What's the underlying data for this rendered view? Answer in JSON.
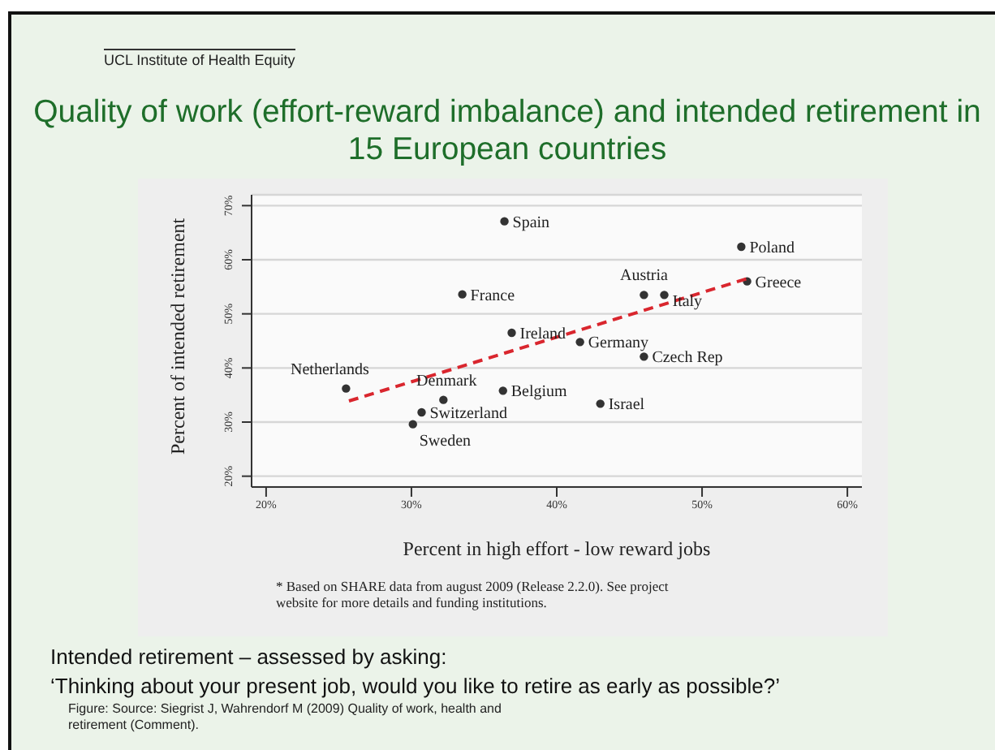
{
  "chart_data": {
    "type": "scatter",
    "title": "Quality of work (effort-reward imbalance) and intended retirement in 15 European countries",
    "xlabel": "Percent in high effort - low reward jobs",
    "ylabel": "Percent of intended retirement",
    "xlim": [
      19,
      61
    ],
    "ylim": [
      18,
      72
    ],
    "xticks": [
      {
        "value": 20,
        "label": "20%"
      },
      {
        "value": 30,
        "label": "30%"
      },
      {
        "value": 40,
        "label": "40%"
      },
      {
        "value": 50,
        "label": "50%"
      },
      {
        "value": 60,
        "label": "60%"
      }
    ],
    "yticks": [
      {
        "value": 20,
        "label": "20%"
      },
      {
        "value": 30,
        "label": "30%"
      },
      {
        "value": 40,
        "label": "40%"
      },
      {
        "value": 50,
        "label": "50%"
      },
      {
        "value": 60,
        "label": "60%"
      },
      {
        "value": 70,
        "label": "70%"
      }
    ],
    "grid": "y",
    "marker": "circle",
    "series": [
      {
        "name": "Spain",
        "color": "#333333",
        "x": [
          36.4
        ],
        "values": [
          67.1
        ]
      },
      {
        "name": "Poland",
        "color": "#333333",
        "x": [
          52.7
        ],
        "values": [
          62.4
        ]
      },
      {
        "name": "Greece",
        "color": "#333333",
        "x": [
          53.1
        ],
        "values": [
          56.0
        ]
      },
      {
        "name": "Austria",
        "color": "#333333",
        "x": [
          46.0
        ],
        "values": [
          53.5
        ]
      },
      {
        "name": "Italy",
        "color": "#333333",
        "x": [
          47.4
        ],
        "values": [
          53.5
        ]
      },
      {
        "name": "France",
        "color": "#333333",
        "x": [
          33.5
        ],
        "values": [
          53.6
        ]
      },
      {
        "name": "Ireland",
        "color": "#333333",
        "x": [
          36.9
        ],
        "values": [
          46.5
        ]
      },
      {
        "name": "Germany",
        "color": "#333333",
        "x": [
          41.6
        ],
        "values": [
          44.8
        ]
      },
      {
        "name": "Czech Rep",
        "color": "#333333",
        "x": [
          46.0
        ],
        "values": [
          42.1
        ]
      },
      {
        "name": "Netherlands",
        "color": "#333333",
        "x": [
          25.5
        ],
        "values": [
          36.2
        ]
      },
      {
        "name": "Denmark",
        "color": "#333333",
        "x": [
          32.2
        ],
        "values": [
          34.1
        ]
      },
      {
        "name": "Belgium",
        "color": "#333333",
        "x": [
          36.3
        ],
        "values": [
          35.8
        ]
      },
      {
        "name": "Israel",
        "color": "#333333",
        "x": [
          43.0
        ],
        "values": [
          33.4
        ]
      },
      {
        "name": "Switzerland",
        "color": "#333333",
        "x": [
          30.7
        ],
        "values": [
          31.8
        ]
      },
      {
        "name": "Sweden",
        "color": "#333333",
        "x": [
          30.1
        ],
        "values": [
          29.6
        ]
      },
      {
        "type": "line",
        "color": "#d9262e",
        "line_style": "dashed",
        "marker": "none",
        "x": [
          25.7,
          53.1
        ],
        "values": [
          33.9,
          56.5
        ]
      }
    ],
    "annotations": [
      "UCL Institute of Health Equity",
      "* Based on SHARE data from august 2009 (Release 2.2.0). See project website for more details and funding institutions.",
      "Intended retirement – assessed by asking:",
      "‘Thinking about your present job, would you like to retire as early as possible?’",
      "Figure: Source: Siegrist J, Wahrendorf M (2009) Quality of work, health and retirement (Comment)."
    ]
  }
}
